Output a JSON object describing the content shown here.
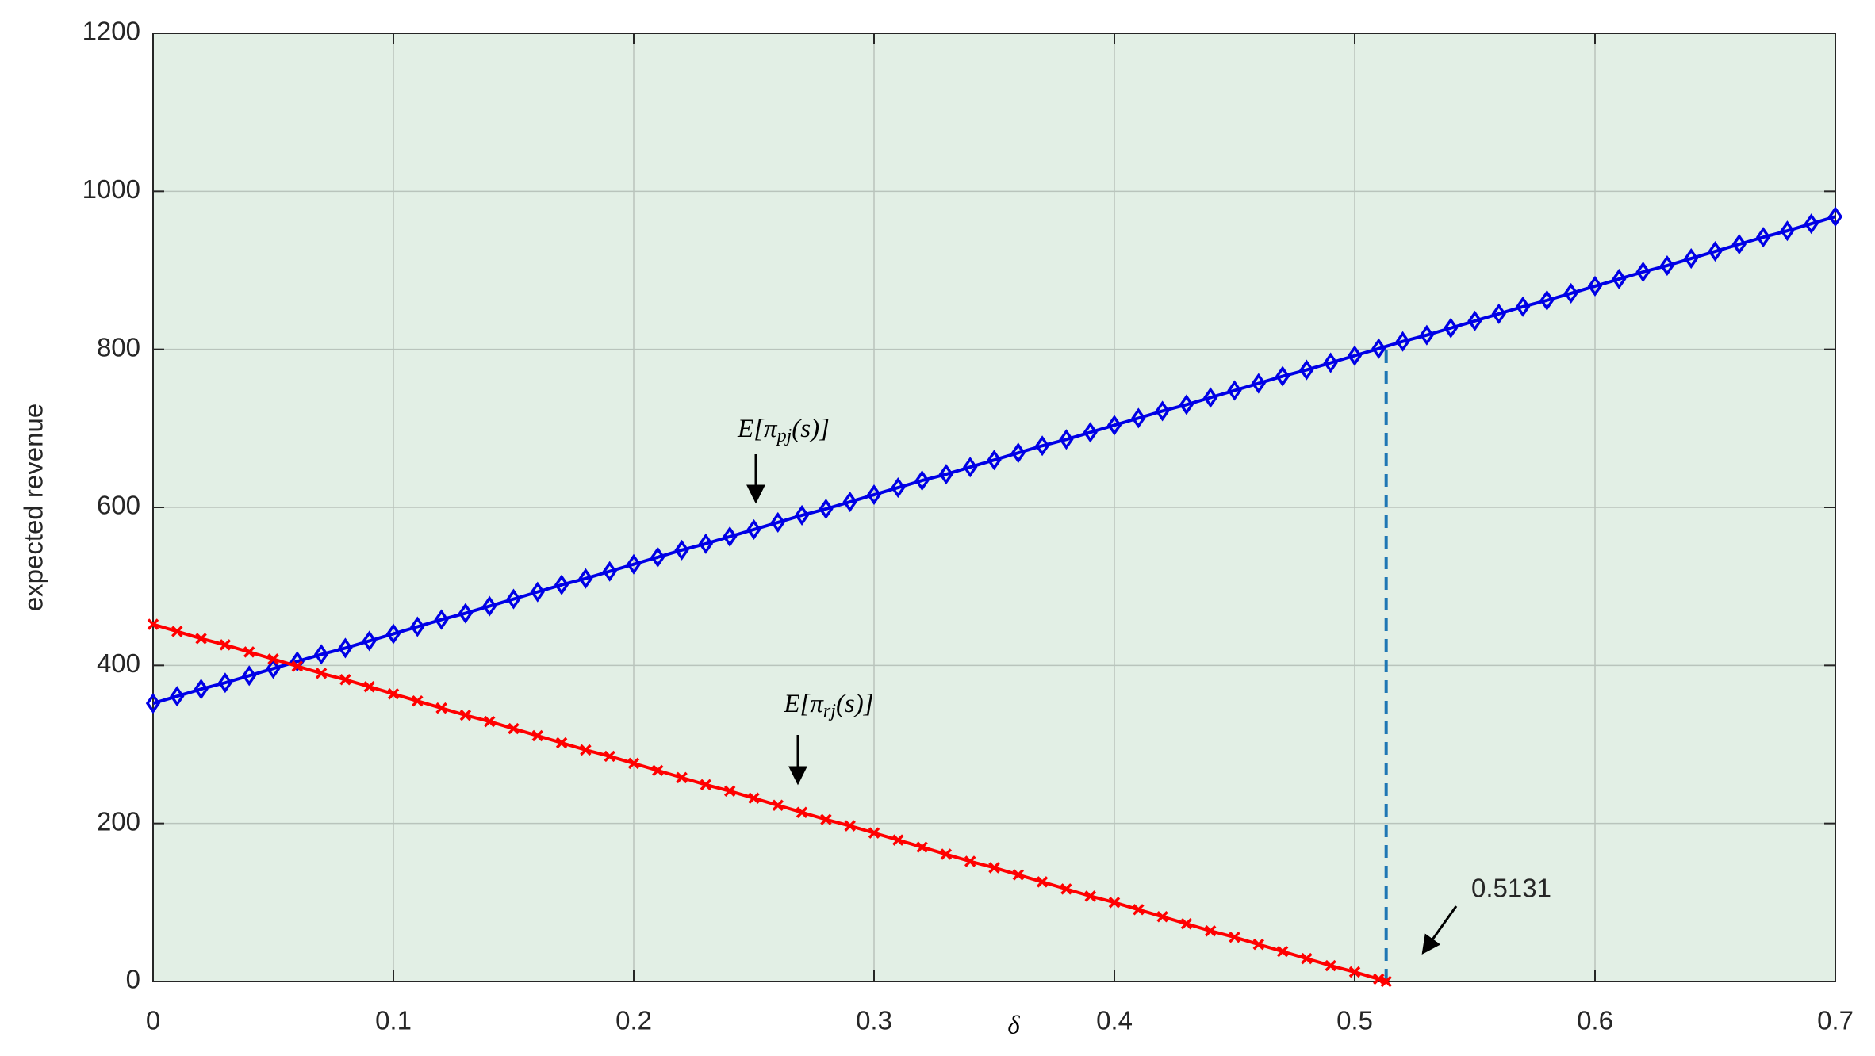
{
  "chart_data": {
    "type": "line",
    "xlabel": "δ",
    "ylabel": "expected revenue",
    "xlim": [
      0,
      0.7
    ],
    "ylim": [
      0,
      1200
    ],
    "xticks": [
      0,
      0.1,
      0.2,
      0.3,
      0.4,
      0.5,
      0.6,
      0.7
    ],
    "yticks": [
      0,
      200,
      400,
      600,
      800,
      1000,
      1200
    ],
    "grid": true,
    "background": "#e2efe5",
    "series": [
      {
        "label": {
          "main": "E[π",
          "sub": "pj",
          "end": "(s)]"
        },
        "color": "#0000e6",
        "marker": "diamond",
        "x": [
          0,
          0.01,
          0.02,
          0.03,
          0.04,
          0.05,
          0.06,
          0.07,
          0.08,
          0.09,
          0.1,
          0.11,
          0.12,
          0.13,
          0.14,
          0.15,
          0.16,
          0.17,
          0.18,
          0.19,
          0.2,
          0.21,
          0.22,
          0.23,
          0.24,
          0.25,
          0.26,
          0.27,
          0.28,
          0.29,
          0.3,
          0.31,
          0.32,
          0.33,
          0.34,
          0.35,
          0.36,
          0.37,
          0.38,
          0.39,
          0.4,
          0.41,
          0.42,
          0.43,
          0.44,
          0.45,
          0.46,
          0.47,
          0.48,
          0.49,
          0.5,
          0.51,
          0.52,
          0.53,
          0.54,
          0.55,
          0.56,
          0.57,
          0.58,
          0.59,
          0.6,
          0.61,
          0.62,
          0.63,
          0.64,
          0.65,
          0.66,
          0.67,
          0.68,
          0.69,
          0.7
        ],
        "values": [
          352,
          361,
          370,
          378,
          387,
          396,
          405,
          414,
          422,
          431,
          440,
          449,
          458,
          466,
          475,
          484,
          493,
          502,
          510,
          519,
          528,
          537,
          546,
          554,
          563,
          572,
          581,
          590,
          598,
          607,
          616,
          625,
          634,
          642,
          651,
          660,
          669,
          678,
          686,
          695,
          704,
          713,
          722,
          730,
          739,
          748,
          757,
          766,
          774,
          783,
          792,
          801,
          810,
          818,
          827,
          836,
          845,
          854,
          862,
          871,
          880,
          889,
          898,
          906,
          915,
          924,
          933,
          942,
          950,
          959,
          968
        ]
      },
      {
        "label": {
          "main": "E[π",
          "sub": "rj",
          "end": "(s)]"
        },
        "color": "#ff0000",
        "marker": "x",
        "x": [
          0,
          0.01,
          0.02,
          0.03,
          0.04,
          0.05,
          0.06,
          0.07,
          0.08,
          0.09,
          0.1,
          0.11,
          0.12,
          0.13,
          0.14,
          0.15,
          0.16,
          0.17,
          0.18,
          0.19,
          0.2,
          0.21,
          0.22,
          0.23,
          0.24,
          0.25,
          0.26,
          0.27,
          0.28,
          0.29,
          0.3,
          0.31,
          0.32,
          0.33,
          0.34,
          0.35,
          0.36,
          0.37,
          0.38,
          0.39,
          0.4,
          0.41,
          0.42,
          0.43,
          0.44,
          0.45,
          0.46,
          0.47,
          0.48,
          0.49,
          0.5,
          0.51,
          0.5131
        ],
        "values": [
          452,
          443,
          434,
          426,
          417,
          408,
          399,
          390,
          382,
          373,
          364,
          355,
          346,
          337,
          329,
          320,
          311,
          302,
          293,
          285,
          276,
          267,
          258,
          249,
          241,
          232,
          223,
          214,
          205,
          197,
          188,
          179,
          170,
          161,
          152,
          144,
          135,
          126,
          117,
          108,
          100,
          91,
          82,
          73,
          64,
          56,
          47,
          38,
          29,
          20,
          12,
          3,
          0
        ]
      }
    ],
    "reference_line": {
      "x": 0.5131,
      "y": [
        0,
        803
      ],
      "color": "#1f77b4",
      "style": "dashed"
    }
  }
}
